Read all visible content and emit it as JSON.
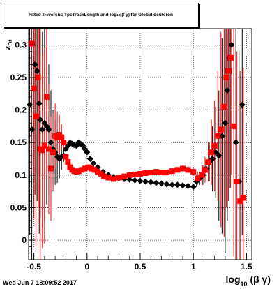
{
  "chart_data": {
    "type": "scatter",
    "title": {
      "part1": "Fitted  z",
      "part1_sub": "Fit",
      "part2": "  versus TpcTrackLength and log",
      "part2_sub": "10",
      "part3": "(β γ) for Global deuteron"
    },
    "ylabel": {
      "main": "z",
      "sub": "Fit"
    },
    "xlabel": {
      "main": "log",
      "sub": "10",
      "rest": "(β γ)"
    },
    "xlim": [
      -0.55,
      1.55
    ],
    "ylim": [
      -0.03,
      0.325
    ],
    "xticks": [
      -0.5,
      0,
      0.5,
      1,
      1.5
    ],
    "xtick_labels": [
      "-0.5",
      "0",
      "0.5",
      "1",
      "1.5"
    ],
    "yticks": [
      0,
      0.05,
      0.1,
      0.15,
      0.2,
      0.25,
      0.3
    ],
    "ytick_labels": [
      "0",
      "0.05",
      "0.1",
      "0.15",
      "0.2",
      "0.25",
      "0.3"
    ],
    "grid": true,
    "colors": {
      "black_series": "#000000",
      "red_series": "#ff0000"
    },
    "series": [
      {
        "color": "#000000",
        "marker": "diamond",
        "points": [
          {
            "x": -0.54,
            "y": 0.208,
            "err": 0.2
          },
          {
            "x": -0.52,
            "y": 0.17,
            "err": 0.2
          },
          {
            "x": -0.49,
            "y": 0.27,
            "err": 0.2
          },
          {
            "x": -0.47,
            "y": 0.26,
            "err": 0.2
          },
          {
            "x": -0.45,
            "y": 0.21,
            "err": 0.2
          },
          {
            "x": -0.44,
            "y": 0.185,
            "err": 0.15
          },
          {
            "x": -0.42,
            "y": 0.17,
            "err": 0.15
          },
          {
            "x": -0.4,
            "y": 0.18,
            "err": 0.15
          },
          {
            "x": -0.38,
            "y": 0.175,
            "err": 0.12
          },
          {
            "x": -0.36,
            "y": 0.17,
            "err": 0.1
          },
          {
            "x": -0.34,
            "y": 0.15,
            "err": 0.08
          },
          {
            "x": -0.32,
            "y": 0.14,
            "err": 0.06
          },
          {
            "x": -0.3,
            "y": 0.135,
            "err": 0.05
          },
          {
            "x": -0.28,
            "y": 0.128,
            "err": 0.04
          },
          {
            "x": -0.26,
            "y": 0.125,
            "err": 0.03
          },
          {
            "x": -0.24,
            "y": 0.128,
            "err": 0.02
          },
          {
            "x": -0.22,
            "y": 0.13,
            "err": 0.01
          },
          {
            "x": -0.2,
            "y": 0.14,
            "err": 0.005
          },
          {
            "x": -0.18,
            "y": 0.145,
            "err": 0.004
          },
          {
            "x": -0.16,
            "y": 0.15,
            "err": 0.003
          },
          {
            "x": -0.14,
            "y": 0.148,
            "err": 0.003
          },
          {
            "x": -0.12,
            "y": 0.146,
            "err": 0.002
          },
          {
            "x": -0.1,
            "y": 0.145,
            "err": 0.002
          },
          {
            "x": -0.08,
            "y": 0.15,
            "err": 0.002
          },
          {
            "x": -0.06,
            "y": 0.148,
            "err": 0.002
          },
          {
            "x": -0.04,
            "y": 0.145,
            "err": 0.002
          },
          {
            "x": -0.02,
            "y": 0.14,
            "err": 0.002
          },
          {
            "x": 0.0,
            "y": 0.135,
            "err": 0.002
          },
          {
            "x": 0.03,
            "y": 0.125,
            "err": 0.002
          },
          {
            "x": 0.06,
            "y": 0.118,
            "err": 0.002
          },
          {
            "x": 0.1,
            "y": 0.112,
            "err": 0.002
          },
          {
            "x": 0.15,
            "y": 0.105,
            "err": 0.002
          },
          {
            "x": 0.2,
            "y": 0.1,
            "err": 0.002
          },
          {
            "x": 0.25,
            "y": 0.097,
            "err": 0.002
          },
          {
            "x": 0.3,
            "y": 0.095,
            "err": 0.002
          },
          {
            "x": 0.35,
            "y": 0.094,
            "err": 0.002
          },
          {
            "x": 0.4,
            "y": 0.093,
            "err": 0.002
          },
          {
            "x": 0.45,
            "y": 0.092,
            "err": 0.002
          },
          {
            "x": 0.5,
            "y": 0.091,
            "err": 0.002
          },
          {
            "x": 0.55,
            "y": 0.09,
            "err": 0.002
          },
          {
            "x": 0.6,
            "y": 0.089,
            "err": 0.002
          },
          {
            "x": 0.65,
            "y": 0.088,
            "err": 0.002
          },
          {
            "x": 0.7,
            "y": 0.087,
            "err": 0.002
          },
          {
            "x": 0.75,
            "y": 0.086,
            "err": 0.002
          },
          {
            "x": 0.8,
            "y": 0.085,
            "err": 0.002
          },
          {
            "x": 0.85,
            "y": 0.085,
            "err": 0.003
          },
          {
            "x": 0.9,
            "y": 0.084,
            "err": 0.003
          },
          {
            "x": 0.95,
            "y": 0.083,
            "err": 0.004
          },
          {
            "x": 1.0,
            "y": 0.082,
            "err": 0.005
          },
          {
            "x": 1.03,
            "y": 0.09,
            "err": 0.008
          },
          {
            "x": 1.06,
            "y": 0.095,
            "err": 0.01
          },
          {
            "x": 1.09,
            "y": 0.1,
            "err": 0.015
          },
          {
            "x": 1.12,
            "y": 0.11,
            "err": 0.02
          },
          {
            "x": 1.15,
            "y": 0.12,
            "err": 0.03
          },
          {
            "x": 1.18,
            "y": 0.125,
            "err": 0.05
          },
          {
            "x": 1.21,
            "y": 0.135,
            "err": 0.07
          },
          {
            "x": 1.24,
            "y": 0.13,
            "err": 0.1
          },
          {
            "x": 1.27,
            "y": 0.16,
            "err": 0.15
          },
          {
            "x": 1.3,
            "y": 0.18,
            "err": 0.2
          },
          {
            "x": 1.32,
            "y": 0.23,
            "err": 0.2
          },
          {
            "x": 1.34,
            "y": 0.28,
            "err": 0.2
          },
          {
            "x": 1.36,
            "y": 0.3,
            "err": 0.2
          },
          {
            "x": 1.4,
            "y": 0.15,
            "err": 0.2
          },
          {
            "x": 1.43,
            "y": 0.09,
            "err": 0.2
          },
          {
            "x": 1.46,
            "y": 0.208,
            "err": 0.2
          }
        ]
      },
      {
        "color": "#ff0000",
        "marker": "square",
        "points": [
          {
            "x": -0.52,
            "y": 0.302,
            "err": 0.2
          },
          {
            "x": -0.5,
            "y": 0.233,
            "err": 0.2
          },
          {
            "x": -0.48,
            "y": 0.19,
            "err": 0.2
          },
          {
            "x": -0.46,
            "y": 0.25,
            "err": 0.2
          },
          {
            "x": -0.44,
            "y": 0.14,
            "err": 0.2
          },
          {
            "x": -0.42,
            "y": 0.138,
            "err": 0.15
          },
          {
            "x": -0.4,
            "y": 0.145,
            "err": 0.15
          },
          {
            "x": -0.38,
            "y": 0.22,
            "err": 0.12
          },
          {
            "x": -0.36,
            "y": 0.14,
            "err": 0.1
          },
          {
            "x": -0.34,
            "y": 0.11,
            "err": 0.08
          },
          {
            "x": -0.32,
            "y": 0.135,
            "err": 0.06
          },
          {
            "x": -0.3,
            "y": 0.16,
            "err": 0.05
          },
          {
            "x": -0.28,
            "y": 0.158,
            "err": 0.04
          },
          {
            "x": -0.26,
            "y": 0.162,
            "err": 0.03
          },
          {
            "x": -0.24,
            "y": 0.158,
            "err": 0.02
          },
          {
            "x": -0.22,
            "y": 0.15,
            "err": 0.01
          },
          {
            "x": -0.2,
            "y": 0.128,
            "err": 0.005
          },
          {
            "x": -0.18,
            "y": 0.12,
            "err": 0.004
          },
          {
            "x": -0.16,
            "y": 0.112,
            "err": 0.003
          },
          {
            "x": -0.14,
            "y": 0.108,
            "err": 0.003
          },
          {
            "x": -0.12,
            "y": 0.106,
            "err": 0.002
          },
          {
            "x": -0.1,
            "y": 0.105,
            "err": 0.002
          },
          {
            "x": -0.08,
            "y": 0.106,
            "err": 0.002
          },
          {
            "x": -0.05,
            "y": 0.108,
            "err": 0.002
          },
          {
            "x": -0.02,
            "y": 0.11,
            "err": 0.002
          },
          {
            "x": 0.01,
            "y": 0.112,
            "err": 0.002
          },
          {
            "x": 0.04,
            "y": 0.11,
            "err": 0.002
          },
          {
            "x": 0.07,
            "y": 0.108,
            "err": 0.002
          },
          {
            "x": 0.1,
            "y": 0.105,
            "err": 0.002
          },
          {
            "x": 0.13,
            "y": 0.102,
            "err": 0.002
          },
          {
            "x": 0.16,
            "y": 0.098,
            "err": 0.002
          },
          {
            "x": 0.2,
            "y": 0.096,
            "err": 0.002
          },
          {
            "x": 0.25,
            "y": 0.094,
            "err": 0.002
          },
          {
            "x": 0.3,
            "y": 0.096,
            "err": 0.002
          },
          {
            "x": 0.35,
            "y": 0.098,
            "err": 0.002
          },
          {
            "x": 0.4,
            "y": 0.1,
            "err": 0.002
          },
          {
            "x": 0.45,
            "y": 0.101,
            "err": 0.002
          },
          {
            "x": 0.5,
            "y": 0.102,
            "err": 0.002
          },
          {
            "x": 0.55,
            "y": 0.103,
            "err": 0.002
          },
          {
            "x": 0.6,
            "y": 0.104,
            "err": 0.002
          },
          {
            "x": 0.65,
            "y": 0.105,
            "err": 0.002
          },
          {
            "x": 0.7,
            "y": 0.104,
            "err": 0.002
          },
          {
            "x": 0.75,
            "y": 0.104,
            "err": 0.002
          },
          {
            "x": 0.8,
            "y": 0.106,
            "err": 0.002
          },
          {
            "x": 0.85,
            "y": 0.108,
            "err": 0.003
          },
          {
            "x": 0.9,
            "y": 0.11,
            "err": 0.003
          },
          {
            "x": 0.95,
            "y": 0.108,
            "err": 0.004
          },
          {
            "x": 1.0,
            "y": 0.105,
            "err": 0.006
          },
          {
            "x": 1.04,
            "y": 0.095,
            "err": 0.01
          },
          {
            "x": 1.08,
            "y": 0.1,
            "err": 0.015
          },
          {
            "x": 1.11,
            "y": 0.108,
            "err": 0.02
          },
          {
            "x": 1.14,
            "y": 0.12,
            "err": 0.03
          },
          {
            "x": 1.17,
            "y": 0.135,
            "err": 0.05
          },
          {
            "x": 1.2,
            "y": 0.145,
            "err": 0.07
          },
          {
            "x": 1.23,
            "y": 0.16,
            "err": 0.1
          },
          {
            "x": 1.26,
            "y": 0.17,
            "err": 0.15
          },
          {
            "x": 1.29,
            "y": 0.205,
            "err": 0.2
          },
          {
            "x": 1.31,
            "y": 0.25,
            "err": 0.2
          },
          {
            "x": 1.33,
            "y": 0.26,
            "err": 0.2
          },
          {
            "x": 1.35,
            "y": 0.28,
            "err": 0.2
          },
          {
            "x": 1.38,
            "y": 0.175,
            "err": 0.2
          },
          {
            "x": 1.41,
            "y": 0.09,
            "err": 0.2
          },
          {
            "x": 1.44,
            "y": 0.06,
            "err": 0.2
          },
          {
            "x": 1.47,
            "y": 0.065,
            "err": 0.2
          }
        ]
      }
    ]
  },
  "footer": {
    "datetime": "Wed Jun  7 18:09:52 2017"
  }
}
